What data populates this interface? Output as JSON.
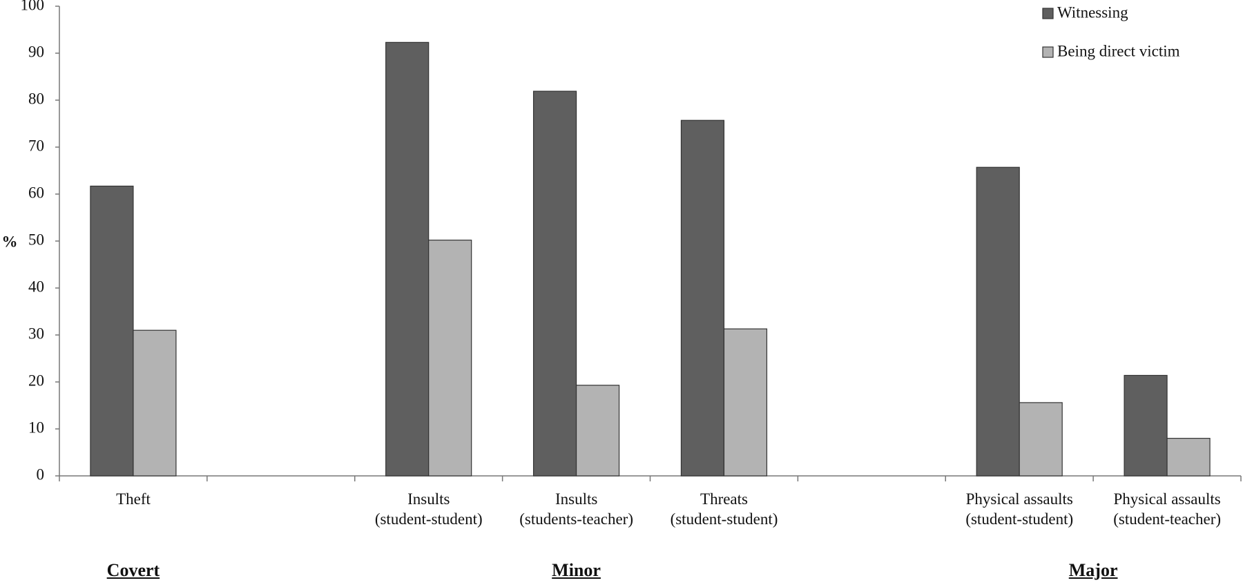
{
  "chart_data": {
    "type": "bar",
    "y_label": "%",
    "categories": [
      "Theft",
      null,
      "Insults\n(student-student)",
      "Insults\n(students-teacher)",
      "Threats\n(student-student)",
      null,
      "Physical assaults\n(student-student)",
      "Physical assaults\n(student-teacher)"
    ],
    "groups": [
      "Covert",
      "Minor",
      "Major"
    ],
    "series": [
      {
        "name": "Witnessing",
        "color": "#5f5f5f",
        "values": [
          61.7,
          null,
          92.3,
          81.9,
          75.7,
          null,
          65.7,
          21.4
        ]
      },
      {
        "name": "Being direct victim",
        "color": "#b3b3b3",
        "values": [
          31,
          null,
          50.2,
          19.3,
          31.3,
          null,
          15.6,
          8
        ]
      }
    ],
    "ylim": [
      0,
      100
    ],
    "yticks": [
      0,
      10,
      20,
      30,
      40,
      50,
      60,
      70,
      80,
      90,
      100
    ],
    "legend": "top-right"
  }
}
